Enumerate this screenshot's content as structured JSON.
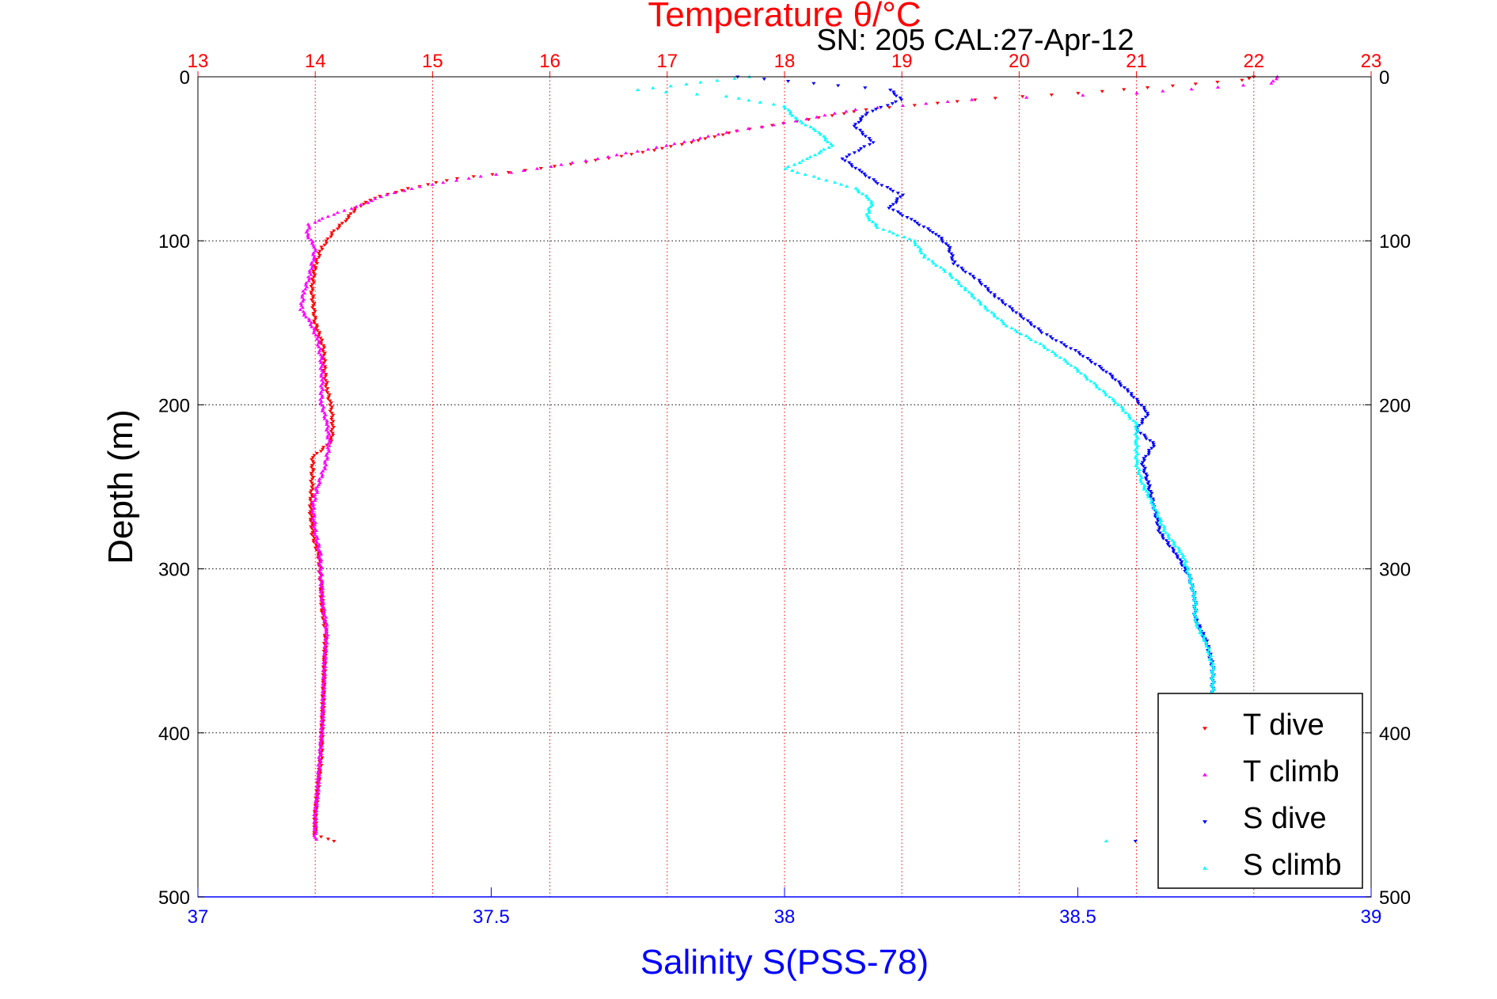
{
  "chart_data": {
    "type": "scatter",
    "title": "Temperature θ/°C",
    "annotation": "SN: 205  CAL:27-Apr-12",
    "xlabel_bottom": "Salinity S(PSS-78)",
    "xlabel_top": "Temperature θ/°C",
    "ylabel": "Depth (m)",
    "salinity_range": [
      37,
      39
    ],
    "temperature_range": [
      13,
      23
    ],
    "depth_range": [
      0,
      500
    ],
    "y_reversed": true,
    "grid": true,
    "legend_position": "bottom-right",
    "salinity_ticks": [
      "37",
      "37.5",
      "38",
      "38.5",
      "39"
    ],
    "temperature_ticks": [
      "13",
      "14",
      "15",
      "16",
      "17",
      "18",
      "19",
      "20",
      "21",
      "22",
      "23"
    ],
    "depth_ticks": [
      "0",
      "100",
      "200",
      "300",
      "400",
      "500"
    ],
    "colors": {
      "t_dive": "#ff0000",
      "t_climb": "#ff00ff",
      "s_dive": "#0000ff",
      "s_climb": "#00ffff",
      "grid_temperature": "#ff0000",
      "grid_depth": "#000000",
      "axis_bottom": "#0000ff"
    },
    "series": [
      {
        "name": "T dive",
        "axis": "temperature",
        "marker": "triangle-down",
        "color": "#ff0000",
        "points": [
          [
            22.0,
            0
          ],
          [
            21.9,
            2
          ],
          [
            20.5,
            10
          ],
          [
            19.8,
            13
          ],
          [
            19.3,
            16
          ],
          [
            18.7,
            20
          ],
          [
            18.2,
            26
          ],
          [
            17.6,
            33
          ],
          [
            17.2,
            40
          ],
          [
            16.8,
            46
          ],
          [
            16.3,
            52
          ],
          [
            15.8,
            57
          ],
          [
            15.2,
            62
          ],
          [
            14.8,
            68
          ],
          [
            14.5,
            74
          ],
          [
            14.35,
            80
          ],
          [
            14.25,
            88
          ],
          [
            14.15,
            95
          ],
          [
            14.05,
            105
          ],
          [
            14.0,
            115
          ],
          [
            13.97,
            130
          ],
          [
            14.0,
            150
          ],
          [
            14.07,
            165
          ],
          [
            14.08,
            180
          ],
          [
            14.1,
            190
          ],
          [
            14.13,
            200
          ],
          [
            14.15,
            210
          ],
          [
            14.14,
            222
          ],
          [
            13.98,
            232
          ],
          [
            13.97,
            250
          ],
          [
            13.96,
            265
          ],
          [
            13.98,
            280
          ],
          [
            14.03,
            292
          ],
          [
            14.05,
            310
          ],
          [
            14.06,
            325
          ],
          [
            14.09,
            338
          ],
          [
            14.08,
            355
          ],
          [
            14.07,
            375
          ],
          [
            14.06,
            395
          ],
          [
            14.05,
            415
          ],
          [
            14.02,
            435
          ],
          [
            14.0,
            450
          ],
          [
            14.0,
            462
          ],
          [
            14.15,
            466
          ]
        ]
      },
      {
        "name": "T climb",
        "axis": "temperature",
        "marker": "triangle-up",
        "color": "#ff00ff",
        "points": [
          [
            22.2,
            0
          ],
          [
            22.15,
            4
          ],
          [
            21.0,
            10
          ],
          [
            19.6,
            14
          ],
          [
            18.6,
            20
          ],
          [
            18.1,
            27
          ],
          [
            17.5,
            34
          ],
          [
            17.0,
            42
          ],
          [
            16.4,
            50
          ],
          [
            15.9,
            56
          ],
          [
            15.3,
            62
          ],
          [
            14.9,
            67
          ],
          [
            14.6,
            72
          ],
          [
            14.4,
            78
          ],
          [
            14.15,
            84
          ],
          [
            13.95,
            90
          ],
          [
            13.93,
            96
          ],
          [
            14.0,
            104
          ],
          [
            13.98,
            112
          ],
          [
            13.95,
            122
          ],
          [
            13.9,
            132
          ],
          [
            13.88,
            142
          ],
          [
            13.96,
            150
          ],
          [
            14.02,
            160
          ],
          [
            14.05,
            172
          ],
          [
            14.06,
            185
          ],
          [
            14.05,
            198
          ],
          [
            14.1,
            212
          ],
          [
            14.12,
            225
          ],
          [
            14.08,
            238
          ],
          [
            14.02,
            250
          ],
          [
            13.98,
            262
          ],
          [
            14.0,
            278
          ],
          [
            14.04,
            290
          ],
          [
            14.05,
            305
          ],
          [
            14.06,
            320
          ],
          [
            14.1,
            338
          ],
          [
            14.08,
            355
          ],
          [
            14.07,
            375
          ],
          [
            14.06,
            395
          ],
          [
            14.04,
            415
          ],
          [
            14.02,
            435
          ],
          [
            14.0,
            450
          ],
          [
            14.0,
            465
          ]
        ]
      },
      {
        "name": "S dive",
        "axis": "salinity",
        "marker": "triangle-down",
        "color": "#0000ff",
        "points": [
          [
            37.92,
            0
          ],
          [
            38.05,
            4
          ],
          [
            38.18,
            8
          ],
          [
            38.2,
            14
          ],
          [
            38.14,
            22
          ],
          [
            38.12,
            30
          ],
          [
            38.15,
            40
          ],
          [
            38.1,
            50
          ],
          [
            38.13,
            58
          ],
          [
            38.16,
            65
          ],
          [
            38.2,
            72
          ],
          [
            38.18,
            80
          ],
          [
            38.22,
            88
          ],
          [
            38.26,
            96
          ],
          [
            38.28,
            104
          ],
          [
            38.29,
            114
          ],
          [
            38.33,
            124
          ],
          [
            38.36,
            134
          ],
          [
            38.4,
            145
          ],
          [
            38.44,
            156
          ],
          [
            38.5,
            168
          ],
          [
            38.55,
            180
          ],
          [
            38.59,
            193
          ],
          [
            38.62,
            205
          ],
          [
            38.6,
            215
          ],
          [
            38.63,
            224
          ],
          [
            38.61,
            235
          ],
          [
            38.62,
            248
          ],
          [
            38.63,
            262
          ],
          [
            38.64,
            278
          ],
          [
            38.67,
            292
          ],
          [
            38.69,
            305
          ],
          [
            38.7,
            318
          ],
          [
            38.7,
            330
          ],
          [
            38.72,
            345
          ],
          [
            38.73,
            360
          ],
          [
            38.73,
            375
          ],
          [
            38.7,
            466
          ],
          [
            38.6,
            466
          ]
        ]
      },
      {
        "name": "S climb",
        "axis": "salinity",
        "marker": "triangle-up",
        "color": "#00ffff",
        "points": [
          [
            37.94,
            0
          ],
          [
            37.75,
            8
          ],
          [
            37.9,
            12
          ],
          [
            38.0,
            18
          ],
          [
            38.02,
            26
          ],
          [
            38.06,
            34
          ],
          [
            38.08,
            42
          ],
          [
            38.04,
            50
          ],
          [
            38.0,
            56
          ],
          [
            38.06,
            62
          ],
          [
            38.12,
            68
          ],
          [
            38.15,
            76
          ],
          [
            38.14,
            85
          ],
          [
            38.16,
            92
          ],
          [
            38.22,
            100
          ],
          [
            38.24,
            110
          ],
          [
            38.28,
            120
          ],
          [
            38.31,
            130
          ],
          [
            38.34,
            140
          ],
          [
            38.38,
            152
          ],
          [
            38.44,
            164
          ],
          [
            38.49,
            176
          ],
          [
            38.53,
            188
          ],
          [
            38.57,
            200
          ],
          [
            38.6,
            212
          ],
          [
            38.6,
            224
          ],
          [
            38.6,
            236
          ],
          [
            38.61,
            248
          ],
          [
            38.63,
            262
          ],
          [
            38.65,
            278
          ],
          [
            38.68,
            292
          ],
          [
            38.69,
            305
          ],
          [
            38.7,
            318
          ],
          [
            38.7,
            332
          ],
          [
            38.72,
            346
          ],
          [
            38.73,
            360
          ],
          [
            38.73,
            375
          ],
          [
            38.65,
            466
          ],
          [
            38.55,
            466
          ]
        ]
      }
    ]
  }
}
